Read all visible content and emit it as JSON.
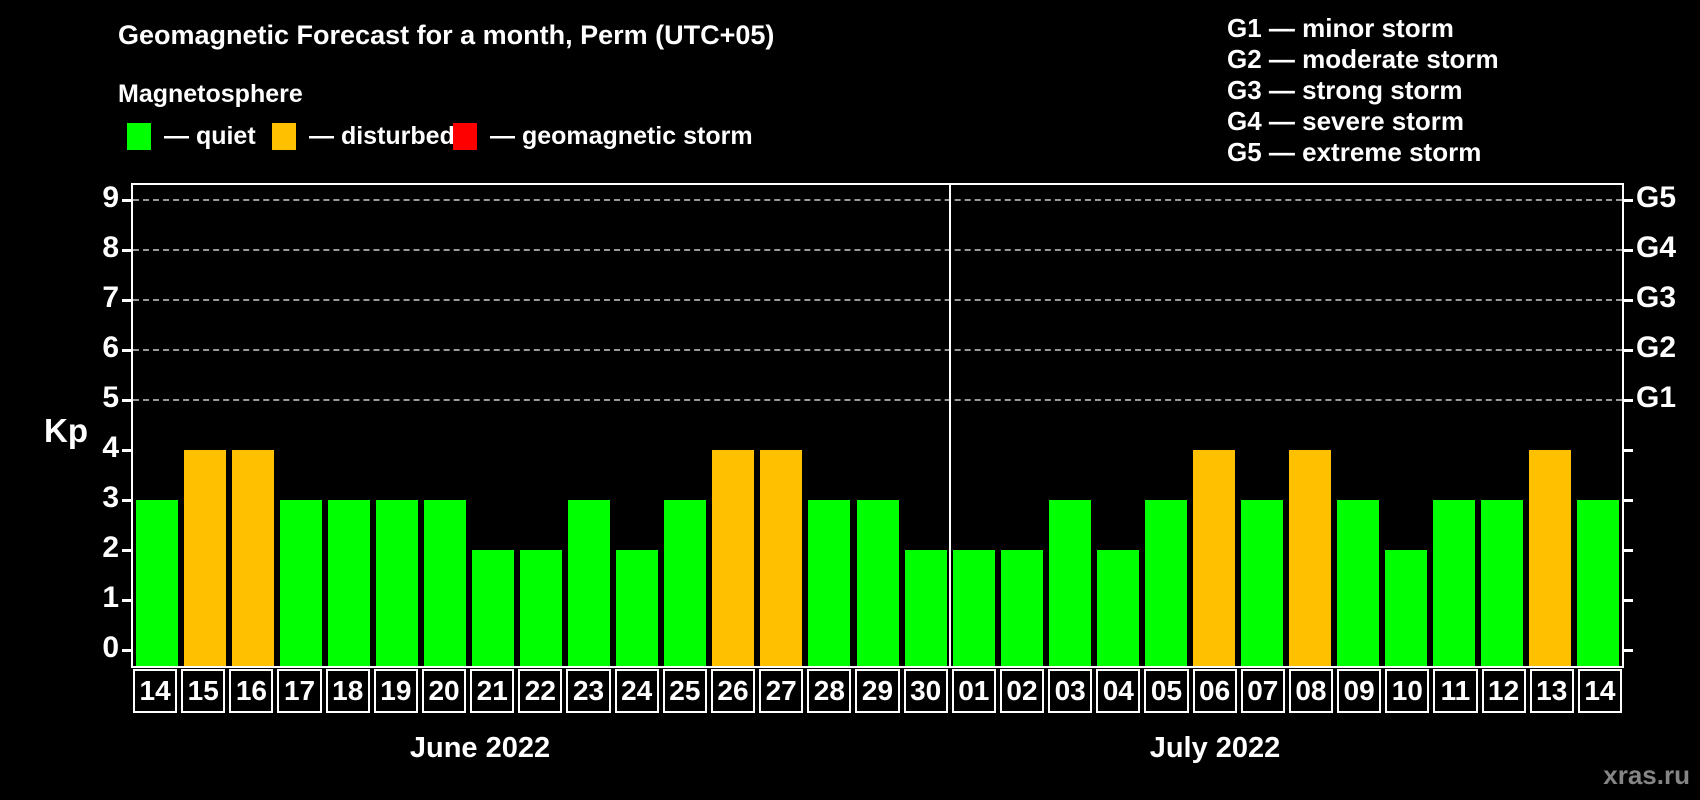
{
  "title": "Geomagnetic Forecast for a month, Perm (UTC+05)",
  "subtitle": "Magnetosphere",
  "watermark": "xras.ru",
  "colors": {
    "quiet": "#00ff00",
    "disturbed": "#ffc000",
    "storm": "#ff0000",
    "grid": "#999999",
    "frame": "#ffffff",
    "text": "#ffffff",
    "background": "#000000",
    "watermark": "#858585"
  },
  "legend": [
    {
      "key": "quiet",
      "label": "— quiet"
    },
    {
      "key": "disturbed",
      "label": "— disturbed"
    },
    {
      "key": "storm",
      "label": "— geomagnetic storm"
    }
  ],
  "g_legend": [
    "G1 — minor storm",
    "G2 — moderate storm",
    "G3 — strong storm",
    "G4 — severe storm",
    "G5 — extreme storm"
  ],
  "chart_data": {
    "type": "bar",
    "title": "Geomagnetic Forecast for a month, Perm (UTC+05)",
    "subtitle": "Magnetosphere",
    "ylabel": "Kp",
    "ylim": [
      0,
      9.4
    ],
    "yticks": [
      0,
      1,
      2,
      3,
      4,
      5,
      6,
      7,
      8,
      9
    ],
    "grid_kp": [
      5,
      6,
      7,
      8,
      9
    ],
    "grid": "dashed horizontal at Kp 5-9 only",
    "legend_position": "top-left",
    "right_axis_labels": [
      {
        "label": "G1",
        "kp": 5
      },
      {
        "label": "G2",
        "kp": 6
      },
      {
        "label": "G3",
        "kp": 7
      },
      {
        "label": "G4",
        "kp": 8
      },
      {
        "label": "G5",
        "kp": 9
      }
    ],
    "months": [
      {
        "label": "June 2022",
        "days": [
          {
            "day": "14",
            "kp": 3,
            "status": "quiet"
          },
          {
            "day": "15",
            "kp": 4,
            "status": "disturbed"
          },
          {
            "day": "16",
            "kp": 4,
            "status": "disturbed"
          },
          {
            "day": "17",
            "kp": 3,
            "status": "quiet"
          },
          {
            "day": "18",
            "kp": 3,
            "status": "quiet"
          },
          {
            "day": "19",
            "kp": 3,
            "status": "quiet"
          },
          {
            "day": "20",
            "kp": 3,
            "status": "quiet"
          },
          {
            "day": "21",
            "kp": 2,
            "status": "quiet"
          },
          {
            "day": "22",
            "kp": 2,
            "status": "quiet"
          },
          {
            "day": "23",
            "kp": 3,
            "status": "quiet"
          },
          {
            "day": "24",
            "kp": 2,
            "status": "quiet"
          },
          {
            "day": "25",
            "kp": 3,
            "status": "quiet"
          },
          {
            "day": "26",
            "kp": 4,
            "status": "disturbed"
          },
          {
            "day": "27",
            "kp": 4,
            "status": "disturbed"
          },
          {
            "day": "28",
            "kp": 3,
            "status": "quiet"
          },
          {
            "day": "29",
            "kp": 3,
            "status": "quiet"
          },
          {
            "day": "30",
            "kp": 2,
            "status": "quiet"
          }
        ]
      },
      {
        "label": "July 2022",
        "days": [
          {
            "day": "01",
            "kp": 2,
            "status": "quiet"
          },
          {
            "day": "02",
            "kp": 2,
            "status": "quiet"
          },
          {
            "day": "03",
            "kp": 3,
            "status": "quiet"
          },
          {
            "day": "04",
            "kp": 2,
            "status": "quiet"
          },
          {
            "day": "05",
            "kp": 3,
            "status": "quiet"
          },
          {
            "day": "06",
            "kp": 4,
            "status": "disturbed"
          },
          {
            "day": "07",
            "kp": 3,
            "status": "quiet"
          },
          {
            "day": "08",
            "kp": 4,
            "status": "disturbed"
          },
          {
            "day": "09",
            "kp": 3,
            "status": "quiet"
          },
          {
            "day": "10",
            "kp": 2,
            "status": "quiet"
          },
          {
            "day": "11",
            "kp": 3,
            "status": "quiet"
          },
          {
            "day": "12",
            "kp": 3,
            "status": "quiet"
          },
          {
            "day": "13",
            "kp": 4,
            "status": "disturbed"
          },
          {
            "day": "14",
            "kp": 3,
            "status": "quiet"
          }
        ]
      }
    ]
  }
}
